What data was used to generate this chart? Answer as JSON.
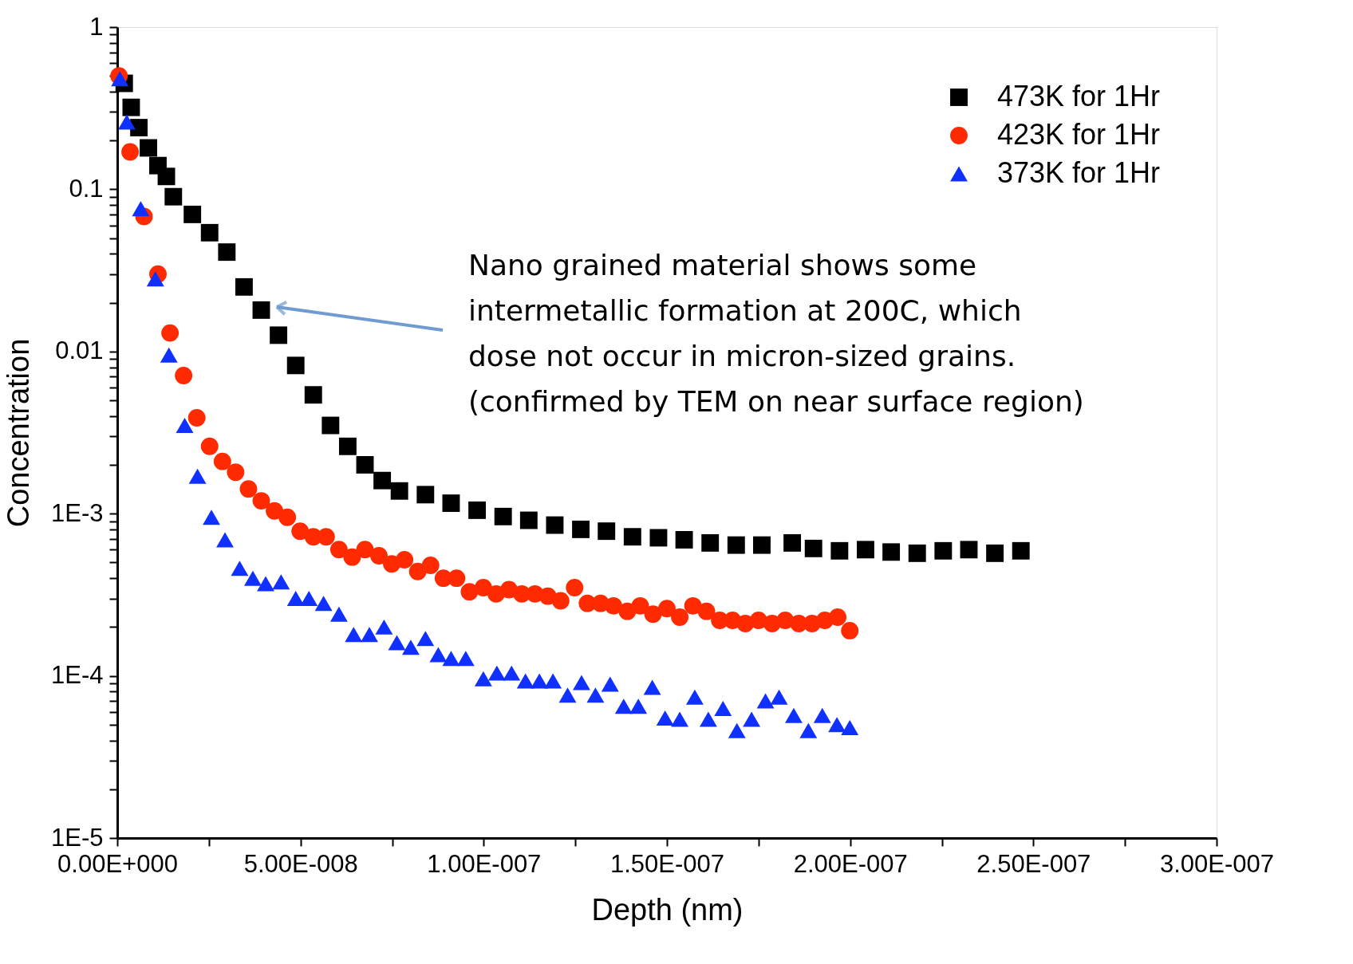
{
  "chart_data": {
    "type": "scatter",
    "xlabel": "Depth (nm)",
    "ylabel": "Concentration",
    "log": "y",
    "grid": false,
    "legend": "top right",
    "xlim": [
      0,
      3e-07
    ],
    "ylim": [
      1e-05,
      1
    ],
    "xticks": [
      {
        "value": 0,
        "label": "0.00E+000"
      },
      {
        "value": 2.5e-08,
        "label": null
      },
      {
        "value": 5e-08,
        "label": "5.00E-008"
      },
      {
        "value": 7.5e-08,
        "label": null
      },
      {
        "value": 1e-07,
        "label": "1.00E-007"
      },
      {
        "value": 1.25e-07,
        "label": null
      },
      {
        "value": 1.5e-07,
        "label": "1.50E-007"
      },
      {
        "value": 1.75e-07,
        "label": null
      },
      {
        "value": 2e-07,
        "label": "2.00E-007"
      },
      {
        "value": 2.25e-07,
        "label": null
      },
      {
        "value": 2.5e-07,
        "label": "2.50E-007"
      },
      {
        "value": 2.75e-07,
        "label": null
      },
      {
        "value": 3e-07,
        "label": "3.00E-007"
      }
    ],
    "yticks": [
      {
        "value": 1e-05,
        "label": "1E-5"
      },
      {
        "value": 2e-05,
        "label": null
      },
      {
        "value": 3e-05,
        "label": null
      },
      {
        "value": 4e-05,
        "label": null
      },
      {
        "value": 5e-05,
        "label": null
      },
      {
        "value": 6e-05,
        "label": null
      },
      {
        "value": 7e-05,
        "label": null
      },
      {
        "value": 8e-05,
        "label": null
      },
      {
        "value": 9e-05,
        "label": null
      },
      {
        "value": 0.0001,
        "label": "1E-4"
      },
      {
        "value": 0.0002,
        "label": null
      },
      {
        "value": 0.0003,
        "label": null
      },
      {
        "value": 0.0004,
        "label": null
      },
      {
        "value": 0.0005,
        "label": null
      },
      {
        "value": 0.0006,
        "label": null
      },
      {
        "value": 0.0007,
        "label": null
      },
      {
        "value": 0.0008,
        "label": null
      },
      {
        "value": 0.0009,
        "label": null
      },
      {
        "value": 0.001,
        "label": "1E-3"
      },
      {
        "value": 0.002,
        "label": null
      },
      {
        "value": 0.003,
        "label": null
      },
      {
        "value": 0.004,
        "label": null
      },
      {
        "value": 0.005,
        "label": null
      },
      {
        "value": 0.006,
        "label": null
      },
      {
        "value": 0.007,
        "label": null
      },
      {
        "value": 0.008,
        "label": null
      },
      {
        "value": 0.009,
        "label": null
      },
      0.01,
      {
        "value": 0.02,
        "label": null
      },
      {
        "value": 0.03,
        "label": null
      },
      {
        "value": 0.04,
        "label": null
      },
      {
        "value": 0.05,
        "label": null
      },
      {
        "value": 0.06,
        "label": null
      },
      {
        "value": 0.07,
        "label": null
      },
      {
        "value": 0.08,
        "label": null
      },
      {
        "value": 0.09,
        "label": null
      },
      0.1,
      {
        "value": 0.2,
        "label": null
      },
      {
        "value": 0.3,
        "label": null
      },
      {
        "value": 0.4,
        "label": null
      },
      {
        "value": 0.5,
        "label": null
      },
      {
        "value": 0.6,
        "label": null
      },
      {
        "value": 0.7,
        "label": null
      },
      {
        "value": 0.8,
        "label": null
      },
      {
        "value": 0.9,
        "label": null
      },
      1
    ],
    "annotations": [
      "Nano grained material shows some\nintermetallic formation at 200C, which\ndose not occur in micron-sized grains.\n(confirmed by TEM on near surface region)"
    ],
    "series": [
      {
        "name": "473K for 1Hr",
        "color": "#000000",
        "marker": "square",
        "x": [
          1.9e-09,
          3.8e-09,
          5.9e-09,
          8.5e-09,
          1.11e-08,
          1.34e-08,
          1.53e-08,
          2.05e-08,
          2.52e-08,
          2.99e-08,
          3.46e-08,
          3.93e-08,
          4.4e-08,
          4.87e-08,
          5.35e-08,
          5.82e-08,
          6.29e-08,
          6.76e-08,
          7.23e-08,
          7.7e-08,
          8.41e-08,
          9.11e-08,
          9.82e-08,
          1.053e-07,
          1.123e-07,
          1.194e-07,
          1.265e-07,
          1.335e-07,
          1.406e-07,
          1.477e-07,
          1.547e-07,
          1.618e-07,
          1.689e-07,
          1.759e-07,
          1.842e-07,
          1.9e-07,
          1.971e-07,
          2.042e-07,
          2.112e-07,
          2.183e-07,
          2.254e-07,
          2.324e-07,
          2.395e-07,
          2.466e-07
        ],
        "values": [
          0.45,
          0.32,
          0.24,
          0.18,
          0.14,
          0.12,
          0.09,
          0.07,
          0.054,
          0.041,
          0.025,
          0.018,
          0.0126,
          0.0082,
          0.0054,
          0.0035,
          0.0026,
          0.002,
          0.0016,
          0.00138,
          0.00131,
          0.00116,
          0.00105,
          0.00096,
          0.00091,
          0.00085,
          0.0008,
          0.00078,
          0.00072,
          0.00071,
          0.00069,
          0.00066,
          0.00064,
          0.00064,
          0.00066,
          0.00061,
          0.00059,
          0.0006,
          0.00058,
          0.00057,
          0.00059,
          0.0006,
          0.00057,
          0.00059
        ]
      },
      {
        "name": "423K for 1Hr",
        "color": "#ff2a00",
        "marker": "circle",
        "x": [
          4.7e-10,
          3.5e-09,
          7.3e-09,
          1.11e-08,
          1.44e-08,
          1.81e-08,
          2.17e-08,
          2.52e-08,
          2.87e-08,
          3.23e-08,
          3.58e-08,
          3.93e-08,
          4.29e-08,
          4.64e-08,
          4.99e-08,
          5.35e-08,
          5.7e-08,
          6.05e-08,
          6.41e-08,
          6.76e-08,
          7.14e-08,
          7.49e-08,
          7.84e-08,
          8.2e-08,
          8.55e-08,
          8.9e-08,
          9.26e-08,
          9.61e-08,
          9.99e-08,
          1.034e-07,
          1.069e-07,
          1.104e-07,
          1.14e-07,
          1.175e-07,
          1.21e-07,
          1.248e-07,
          1.283e-07,
          1.319e-07,
          1.354e-07,
          1.392e-07,
          1.427e-07,
          1.462e-07,
          1.5e-07,
          1.535e-07,
          1.571e-07,
          1.608e-07,
          1.644e-07,
          1.679e-07,
          1.714e-07,
          1.75e-07,
          1.787e-07,
          1.823e-07,
          1.86e-07,
          1.896e-07,
          1.931e-07,
          1.966e-07,
          1.999e-07
        ],
        "values": [
          0.5,
          0.17,
          0.068,
          0.03,
          0.013,
          0.0071,
          0.0039,
          0.0026,
          0.0021,
          0.0018,
          0.00142,
          0.0012,
          0.00104,
          0.00095,
          0.00078,
          0.00072,
          0.00072,
          0.0006,
          0.00054,
          0.0006,
          0.00055,
          0.00049,
          0.00052,
          0.00044,
          0.00048,
          0.0004,
          0.0004,
          0.00033,
          0.00035,
          0.00032,
          0.00034,
          0.00032,
          0.00032,
          0.00031,
          0.00029,
          0.00035,
          0.00028,
          0.00028,
          0.00027,
          0.00025,
          0.00027,
          0.00024,
          0.00026,
          0.00023,
          0.00027,
          0.00025,
          0.00022,
          0.00022,
          0.00021,
          0.00022,
          0.00021,
          0.00022,
          0.00021,
          0.00021,
          0.00022,
          0.00023,
          0.00019
        ]
      },
      {
        "name": "373K for 1Hr",
        "color": "#1030ff",
        "marker": "triangle",
        "x": [
          7e-10,
          2.6e-09,
          6.4e-09,
          1.04e-08,
          1.41e-08,
          1.84e-08,
          2.19e-08,
          2.57e-08,
          2.94e-08,
          3.34e-08,
          3.7e-08,
          4.05e-08,
          4.47e-08,
          4.87e-08,
          5.23e-08,
          5.63e-08,
          6.05e-08,
          6.45e-08,
          6.88e-08,
          7.28e-08,
          7.63e-08,
          8.01e-08,
          8.41e-08,
          8.76e-08,
          9.11e-08,
          9.51e-08,
          9.99e-08,
          1.036e-07,
          1.076e-07,
          1.114e-07,
          1.152e-07,
          1.189e-07,
          1.229e-07,
          1.267e-07,
          1.305e-07,
          1.345e-07,
          1.382e-07,
          1.422e-07,
          1.46e-07,
          1.495e-07,
          1.535e-07,
          1.576e-07,
          1.613e-07,
          1.653e-07,
          1.691e-07,
          1.731e-07,
          1.769e-07,
          1.806e-07,
          1.846e-07,
          1.886e-07,
          1.924e-07,
          1.964e-07,
          1.999e-07
        ],
        "values": [
          0.48,
          0.26,
          0.076,
          0.028,
          0.0095,
          0.0035,
          0.0017,
          0.00095,
          0.00069,
          0.00046,
          0.0004,
          0.00037,
          0.00038,
          0.0003,
          0.0003,
          0.00028,
          0.00024,
          0.00018,
          0.00018,
          0.0002,
          0.00016,
          0.00015,
          0.00017,
          0.000135,
          0.000128,
          0.000128,
          9.6e-05,
          0.000104,
          0.000104,
          9.3e-05,
          9.3e-05,
          9.3e-05,
          7.6e-05,
          9.1e-05,
          7.6e-05,
          8.9e-05,
          6.5e-05,
          6.5e-05,
          8.5e-05,
          5.5e-05,
          5.4e-05,
          7.4e-05,
          5.4e-05,
          6.3e-05,
          4.6e-05,
          5.4e-05,
          7e-05,
          7.4e-05,
          5.7e-05,
          4.6e-05,
          5.7e-05,
          5e-05,
          4.8e-05
        ]
      }
    ]
  }
}
